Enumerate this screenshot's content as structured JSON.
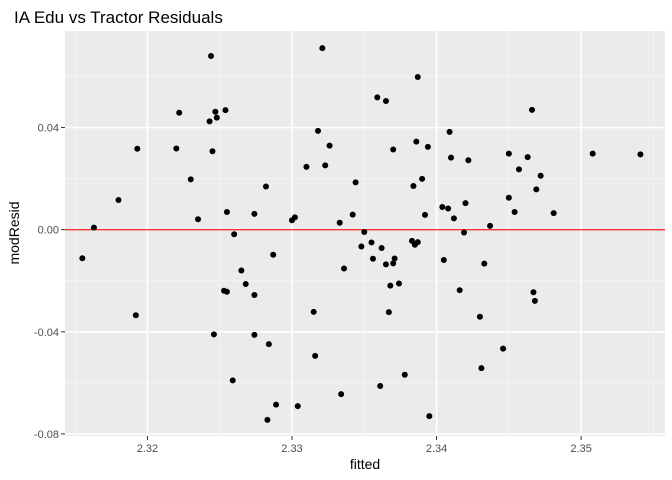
{
  "chart_data": {
    "type": "scatter",
    "title": "IA Edu vs Tractor Residuals",
    "xlabel": "fitted",
    "ylabel": "modResid",
    "xlim": [
      2.3143,
      2.3558
    ],
    "ylim": [
      -0.0808,
      0.0778
    ],
    "x_ticks": [
      2.32,
      2.33,
      2.34,
      2.35
    ],
    "x_tick_labels": [
      "2.32",
      "2.33",
      "2.34",
      "2.35"
    ],
    "y_ticks": [
      -0.08,
      -0.04,
      0.0,
      0.04
    ],
    "y_tick_labels": [
      "-0.08",
      "-0.04",
      "0.00",
      "0.04"
    ],
    "hline": {
      "y": 0.0,
      "color": "#ff3333"
    },
    "grid": true,
    "panel_background": "#ebebeb",
    "point_color": "#000000",
    "x": [
      2.3155,
      2.3163,
      2.318,
      2.3192,
      2.3193,
      2.322,
      2.3222,
      2.323,
      2.3235,
      2.3243,
      2.3244,
      2.3245,
      2.3246,
      2.3247,
      2.3248,
      2.3253,
      2.3254,
      2.3255,
      2.3255,
      2.3259,
      2.326,
      2.3265,
      2.3268,
      2.3274,
      2.3274,
      2.3274,
      2.3282,
      2.3283,
      2.3284,
      2.3287,
      2.3289,
      2.33,
      2.3302,
      2.3304,
      2.331,
      2.3315,
      2.3316,
      2.3318,
      2.3321,
      2.3323,
      2.3326,
      2.3333,
      2.3334,
      2.3336,
      2.3342,
      2.3344,
      2.3348,
      2.335,
      2.3355,
      2.3356,
      2.3359,
      2.3361,
      2.3362,
      2.3365,
      2.3365,
      2.3367,
      2.3368,
      2.337,
      2.337,
      2.3371,
      2.3374,
      2.3378,
      2.3383,
      2.3384,
      2.3385,
      2.3386,
      2.3387,
      2.3387,
      2.339,
      2.3392,
      2.3394,
      2.3395,
      2.3404,
      2.3405,
      2.3408,
      2.3409,
      2.341,
      2.3412,
      2.3416,
      2.3419,
      2.342,
      2.3422,
      2.343,
      2.3431,
      2.3433,
      2.3437,
      2.3446,
      2.345,
      2.345,
      2.3454,
      2.3457,
      2.3463,
      2.3466,
      2.3467,
      2.3468,
      2.3469,
      2.3472,
      2.3481,
      2.3508,
      2.3541
    ],
    "y": [
      -0.0112,
      0.0008,
      0.0116,
      -0.0335,
      0.0317,
      0.0318,
      0.0458,
      0.0197,
      0.0041,
      0.0424,
      0.068,
      0.0307,
      -0.041,
      0.0462,
      0.0439,
      -0.0239,
      0.0468,
      -0.0243,
      0.0069,
      -0.059,
      -0.0018,
      -0.016,
      -0.0213,
      -0.0256,
      0.0062,
      -0.0412,
      0.0169,
      -0.0745,
      -0.0448,
      -0.0098,
      -0.0685,
      0.0037,
      0.0048,
      -0.0691,
      0.0246,
      -0.0322,
      -0.0494,
      0.0387,
      0.0711,
      0.0252,
      0.0329,
      0.0027,
      -0.0644,
      -0.0152,
      0.0059,
      0.0185,
      -0.0066,
      -0.0009,
      -0.005,
      -0.0114,
      0.0518,
      -0.0612,
      -0.0072,
      0.0504,
      -0.0136,
      -0.0323,
      -0.0219,
      0.0314,
      -0.0132,
      -0.0113,
      -0.0211,
      -0.0568,
      -0.0044,
      0.0171,
      -0.0059,
      0.0345,
      -0.0049,
      0.0598,
      0.0199,
      0.0058,
      0.0324,
      -0.073,
      0.0089,
      -0.0119,
      0.0083,
      0.0383,
      0.0282,
      0.0044,
      -0.0237,
      -0.0011,
      0.0104,
      0.0272,
      -0.0341,
      -0.0542,
      -0.0133,
      0.0015,
      -0.0466,
      0.0125,
      0.0298,
      0.0069,
      0.0236,
      0.0284,
      0.0469,
      -0.0245,
      -0.0279,
      0.0158,
      0.0211,
      0.0065,
      0.0298,
      0.0295
    ]
  }
}
